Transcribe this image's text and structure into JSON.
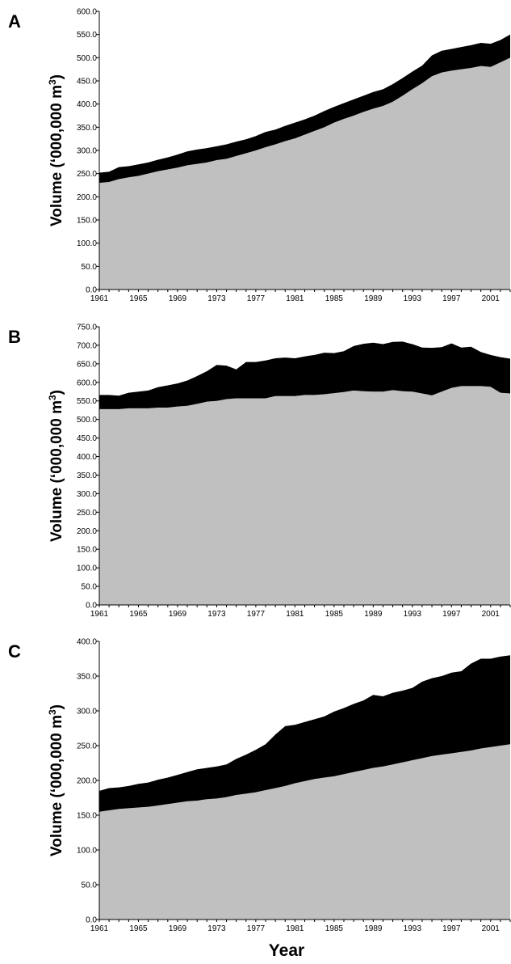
{
  "figure": {
    "xlabel": "Year"
  },
  "chart_data": [
    {
      "panel": "A",
      "type": "area",
      "stacked": true,
      "ylabel": "Volume (‘000,000 m",
      "ylabel_sup": "3",
      "ylabel_tail": ")",
      "ylim": [
        0,
        600
      ],
      "y_ticks": [
        "0.0",
        "50.0",
        "100.0",
        "150.0",
        "200.0",
        "250.0",
        "300.0",
        "350.0",
        "400.0",
        "450.0",
        "500.0",
        "550.0",
        "600.0"
      ],
      "x_ticks": [
        "1961",
        "1965",
        "1969",
        "1973",
        "1977",
        "1981",
        "1985",
        "1989",
        "1993",
        "1997",
        "2001"
      ],
      "x": [
        1961,
        1962,
        1963,
        1964,
        1965,
        1966,
        1967,
        1968,
        1969,
        1970,
        1971,
        1972,
        1973,
        1974,
        1975,
        1976,
        1977,
        1978,
        1979,
        1980,
        1981,
        1982,
        1983,
        1984,
        1985,
        1986,
        1987,
        1988,
        1989,
        1990,
        1991,
        1992,
        1993,
        1994,
        1995,
        1996,
        1997,
        1998,
        1999,
        2000,
        2001,
        2002,
        2003
      ],
      "series": [
        {
          "color": "#c0c0c0",
          "values": [
            230,
            232,
            238,
            242,
            245,
            250,
            255,
            259,
            263,
            268,
            271,
            274,
            279,
            282,
            288,
            294,
            300,
            307,
            313,
            320,
            326,
            334,
            342,
            350,
            360,
            368,
            375,
            383,
            390,
            396,
            405,
            418,
            432,
            445,
            460,
            468,
            472,
            475,
            478,
            482,
            480,
            490,
            500
          ]
        },
        {
          "color": "#000000",
          "values": [
            22,
            22,
            26,
            24,
            25,
            24,
            25,
            26,
            28,
            30,
            31,
            31,
            30,
            31,
            31,
            30,
            31,
            33,
            32,
            33,
            34,
            33,
            33,
            35,
            34,
            34,
            35,
            35,
            36,
            36,
            38,
            38,
            38,
            38,
            45,
            47,
            47,
            48,
            49,
            50,
            50,
            48,
            50
          ]
        }
      ]
    },
    {
      "panel": "B",
      "type": "area",
      "stacked": true,
      "ylabel": "Volume (‘000,000 m",
      "ylabel_sup": "3",
      "ylabel_tail": ")",
      "ylim": [
        0,
        750
      ],
      "y_ticks": [
        "0.0",
        "50.0",
        "100.0",
        "150.0",
        "200.0",
        "250.0",
        "300.0",
        "350.0",
        "400.0",
        "450.0",
        "500.0",
        "550.0",
        "600.0",
        "650.0",
        "700.0",
        "750.0"
      ],
      "x_ticks": [
        "1961",
        "1965",
        "1969",
        "1973",
        "1977",
        "1981",
        "1985",
        "1989",
        "1993",
        "1997",
        "2001"
      ],
      "x": [
        1961,
        1962,
        1963,
        1964,
        1965,
        1966,
        1967,
        1968,
        1969,
        1970,
        1971,
        1972,
        1973,
        1974,
        1975,
        1976,
        1977,
        1978,
        1979,
        1980,
        1981,
        1982,
        1983,
        1984,
        1985,
        1986,
        1987,
        1988,
        1989,
        1990,
        1991,
        1992,
        1993,
        1994,
        1995,
        1996,
        1997,
        1998,
        1999,
        2000,
        2001,
        2002,
        2003
      ],
      "series": [
        {
          "color": "#c0c0c0",
          "values": [
            528,
            528,
            528,
            530,
            530,
            530,
            532,
            532,
            535,
            537,
            542,
            548,
            550,
            555,
            557,
            557,
            557,
            557,
            563,
            563,
            563,
            566,
            566,
            568,
            571,
            574,
            578,
            576,
            575,
            575,
            579,
            576,
            575,
            570,
            565,
            575,
            585,
            590,
            590,
            590,
            588,
            572,
            570
          ]
        },
        {
          "color": "#000000",
          "values": [
            38,
            38,
            36,
            42,
            45,
            48,
            55,
            60,
            62,
            68,
            75,
            82,
            97,
            90,
            78,
            98,
            98,
            102,
            102,
            104,
            102,
            104,
            108,
            112,
            108,
            110,
            120,
            128,
            132,
            128,
            130,
            134,
            128,
            124,
            128,
            120,
            120,
            104,
            106,
            92,
            86,
            96,
            94
          ]
        }
      ]
    },
    {
      "panel": "C",
      "type": "area",
      "stacked": true,
      "ylabel": "Volume (‘000,000 m",
      "ylabel_sup": "3",
      "ylabel_tail": ")",
      "ylim": [
        0,
        400
      ],
      "y_ticks": [
        "0.0",
        "50.0",
        "100.0",
        "150.0",
        "200.0",
        "250.0",
        "300.0",
        "350.0",
        "400.0"
      ],
      "x_ticks": [
        "1961",
        "1965",
        "1969",
        "1973",
        "1977",
        "1981",
        "1985",
        "1989",
        "1993",
        "1997",
        "2001"
      ],
      "x": [
        1961,
        1962,
        1963,
        1964,
        1965,
        1966,
        1967,
        1968,
        1969,
        1970,
        1971,
        1972,
        1973,
        1974,
        1975,
        1976,
        1977,
        1978,
        1979,
        1980,
        1981,
        1982,
        1983,
        1984,
        1985,
        1986,
        1987,
        1988,
        1989,
        1990,
        1991,
        1992,
        1993,
        1994,
        1995,
        1996,
        1997,
        1998,
        1999,
        2000,
        2001,
        2002,
        2003
      ],
      "series": [
        {
          "color": "#c0c0c0",
          "values": [
            155,
            157,
            159,
            160,
            161,
            162,
            164,
            166,
            168,
            170,
            171,
            173,
            174,
            176,
            179,
            181,
            183,
            186,
            189,
            192,
            196,
            199,
            202,
            204,
            206,
            209,
            212,
            215,
            218,
            220,
            223,
            226,
            229,
            232,
            235,
            237,
            239,
            241,
            243,
            246,
            248,
            250,
            252
          ]
        },
        {
          "color": "#000000",
          "values": [
            30,
            32,
            31,
            32,
            34,
            35,
            37,
            38,
            40,
            42,
            45,
            45,
            46,
            47,
            52,
            56,
            61,
            66,
            77,
            86,
            84,
            85,
            86,
            88,
            93,
            95,
            98,
            100,
            105,
            101,
            103,
            103,
            104,
            110,
            112,
            113,
            116,
            116,
            125,
            129,
            127,
            128,
            128
          ]
        }
      ]
    }
  ]
}
